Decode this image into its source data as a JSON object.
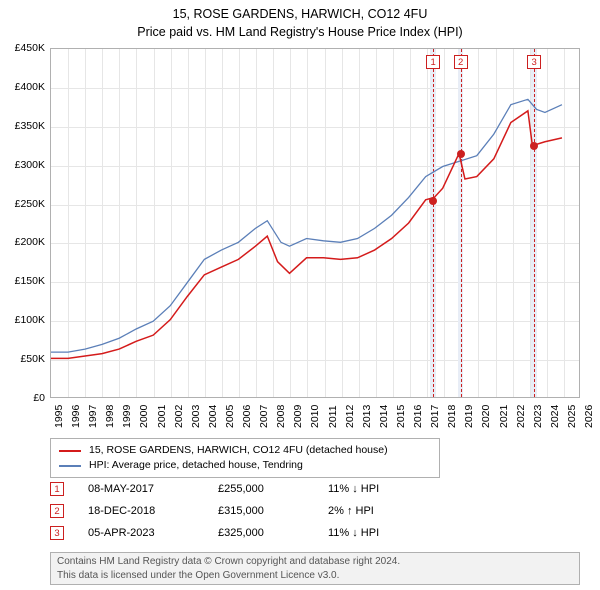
{
  "title_line1": "15, ROSE GARDENS, HARWICH, CO12 4FU",
  "title_line2": "Price paid vs. HM Land Registry's House Price Index (HPI)",
  "chart": {
    "type": "line",
    "x_min": 1995,
    "x_max": 2026,
    "y_min": 0,
    "y_max": 450000,
    "ytick_step": 50000,
    "yticks": [
      "£0",
      "£50K",
      "£100K",
      "£150K",
      "£200K",
      "£250K",
      "£300K",
      "£350K",
      "£400K",
      "£450K"
    ],
    "xticks": [
      1995,
      1996,
      1997,
      1998,
      1999,
      2000,
      2001,
      2002,
      2003,
      2004,
      2005,
      2006,
      2007,
      2008,
      2009,
      2010,
      2011,
      2012,
      2013,
      2014,
      2015,
      2016,
      2017,
      2018,
      2019,
      2020,
      2021,
      2022,
      2023,
      2024,
      2025,
      2026
    ],
    "background_color": "#ffffff",
    "grid_color": "#e6e6e6",
    "border_color": "#b0b0b0",
    "series": [
      {
        "name": "property",
        "label": "15, ROSE GARDENS, HARWICH, CO12 4FU (detached house)",
        "color": "#d41b1b",
        "width": 1.5,
        "points": [
          [
            1995,
            50000
          ],
          [
            1996,
            50000
          ],
          [
            1997,
            53000
          ],
          [
            1998,
            56000
          ],
          [
            1999,
            62000
          ],
          [
            2000,
            72000
          ],
          [
            2001,
            80000
          ],
          [
            2002,
            100000
          ],
          [
            2003,
            130000
          ],
          [
            2004,
            158000
          ],
          [
            2005,
            168000
          ],
          [
            2006,
            178000
          ],
          [
            2007,
            195000
          ],
          [
            2007.7,
            208000
          ],
          [
            2008.3,
            175000
          ],
          [
            2009,
            160000
          ],
          [
            2010,
            180000
          ],
          [
            2011,
            180000
          ],
          [
            2012,
            178000
          ],
          [
            2013,
            180000
          ],
          [
            2014,
            190000
          ],
          [
            2015,
            205000
          ],
          [
            2016,
            225000
          ],
          [
            2017,
            255000
          ],
          [
            2017.5,
            258000
          ],
          [
            2018,
            270000
          ],
          [
            2018.96,
            315000
          ],
          [
            2019.3,
            282000
          ],
          [
            2020,
            285000
          ],
          [
            2021,
            308000
          ],
          [
            2022,
            355000
          ],
          [
            2023,
            370000
          ],
          [
            2023.26,
            325000
          ],
          [
            2024,
            330000
          ],
          [
            2025,
            335000
          ]
        ]
      },
      {
        "name": "hpi",
        "label": "HPI: Average price, detached house, Tendring",
        "color": "#5b7fb8",
        "width": 1.3,
        "points": [
          [
            1995,
            58000
          ],
          [
            1996,
            58000
          ],
          [
            1997,
            62000
          ],
          [
            1998,
            68000
          ],
          [
            1999,
            76000
          ],
          [
            2000,
            88000
          ],
          [
            2001,
            98000
          ],
          [
            2002,
            118000
          ],
          [
            2003,
            148000
          ],
          [
            2004,
            178000
          ],
          [
            2005,
            190000
          ],
          [
            2006,
            200000
          ],
          [
            2007,
            218000
          ],
          [
            2007.7,
            228000
          ],
          [
            2008.5,
            200000
          ],
          [
            2009,
            195000
          ],
          [
            2010,
            205000
          ],
          [
            2011,
            202000
          ],
          [
            2012,
            200000
          ],
          [
            2013,
            205000
          ],
          [
            2014,
            218000
          ],
          [
            2015,
            235000
          ],
          [
            2016,
            258000
          ],
          [
            2017,
            285000
          ],
          [
            2018,
            298000
          ],
          [
            2019,
            305000
          ],
          [
            2020,
            312000
          ],
          [
            2021,
            340000
          ],
          [
            2022,
            378000
          ],
          [
            2023,
            385000
          ],
          [
            2023.5,
            372000
          ],
          [
            2024,
            368000
          ],
          [
            2025,
            378000
          ]
        ]
      }
    ],
    "markers": [
      {
        "n": "1",
        "x": 2017.35,
        "price": 255000
      },
      {
        "n": "2",
        "x": 2018.96,
        "price": 315000
      },
      {
        "n": "3",
        "x": 2023.26,
        "price": 325000
      }
    ],
    "marker_band_color": "#e8edf6",
    "marker_band_width_years": 0.32,
    "marker_line_color": "#cc2020",
    "marker_box_border": "#cc2020"
  },
  "legend": {
    "rows": [
      {
        "color": "#d41b1b",
        "label": "15, ROSE GARDENS, HARWICH, CO12 4FU (detached house)"
      },
      {
        "color": "#5b7fb8",
        "label": "HPI: Average price, detached house, Tendring"
      }
    ]
  },
  "sales": [
    {
      "n": "1",
      "date": "08-MAY-2017",
      "price": "£255,000",
      "diff": "11% ↓ HPI"
    },
    {
      "n": "2",
      "date": "18-DEC-2018",
      "price": "£315,000",
      "diff": "2% ↑ HPI"
    },
    {
      "n": "3",
      "date": "05-APR-2023",
      "price": "£325,000",
      "diff": "11% ↓ HPI"
    }
  ],
  "footer_line1": "Contains HM Land Registry data © Crown copyright and database right 2024.",
  "footer_line2": "This data is licensed under the Open Government Licence v3.0."
}
